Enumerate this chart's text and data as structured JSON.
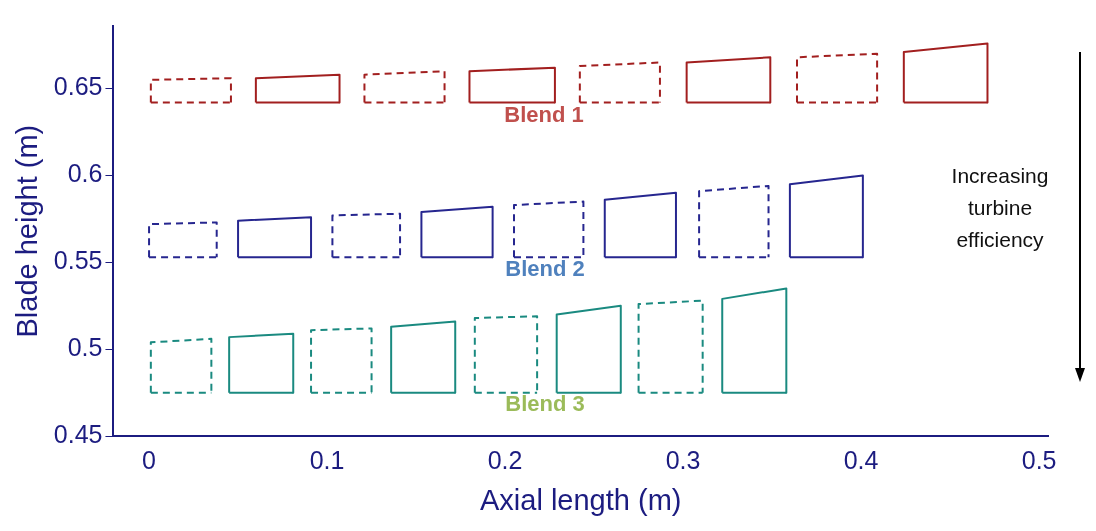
{
  "chart_data": {
    "type": "line",
    "xlabel": "Axial length (m)",
    "ylabel": "Blade height (m)",
    "xlim": [
      -0.02,
      0.505
    ],
    "ylim": [
      0.45,
      0.686
    ],
    "xticks": [
      0,
      0.1,
      0.2,
      0.3,
      0.4,
      0.5
    ],
    "yticks": [
      0.45,
      0.5,
      0.55,
      0.6,
      0.65
    ],
    "grid": false,
    "legend": false,
    "marker": "none",
    "series": [
      {
        "color": "#a21f1f",
        "line_style": "dashed",
        "x": [
          0.001,
          0.001,
          0.046,
          0.046
        ],
        "values": [
          0.642,
          0.655,
          0.656,
          0.642
        ]
      },
      {
        "color": "#a21f1f",
        "line_style": "solid",
        "x": [
          0.06,
          0.06,
          0.107,
          0.107
        ],
        "values": [
          0.642,
          0.656,
          0.658,
          0.642
        ]
      },
      {
        "color": "#a21f1f",
        "line_style": "dashed",
        "x": [
          0.121,
          0.121,
          0.166,
          0.166
        ],
        "values": [
          0.642,
          0.658,
          0.66,
          0.642
        ]
      },
      {
        "color": "#a21f1f",
        "line_style": "solid",
        "x": [
          0.18,
          0.18,
          0.228,
          0.228
        ],
        "values": [
          0.642,
          0.66,
          0.662,
          0.642
        ]
      },
      {
        "color": "#a21f1f",
        "line_style": "dashed",
        "x": [
          0.242,
          0.242,
          0.287,
          0.287
        ],
        "values": [
          0.642,
          0.663,
          0.665,
          0.642
        ]
      },
      {
        "color": "#a21f1f",
        "line_style": "solid",
        "x": [
          0.302,
          0.302,
          0.349,
          0.349
        ],
        "values": [
          0.642,
          0.665,
          0.668,
          0.642
        ]
      },
      {
        "color": "#a21f1f",
        "line_style": "dashed",
        "x": [
          0.364,
          0.364,
          0.409,
          0.409
        ],
        "values": [
          0.642,
          0.668,
          0.67,
          0.642
        ]
      },
      {
        "color": "#a21f1f",
        "line_style": "solid",
        "x": [
          0.424,
          0.424,
          0.471,
          0.471
        ],
        "values": [
          0.642,
          0.671,
          0.676,
          0.642
        ]
      },
      {
        "color": "#26268f",
        "line_style": "dashed",
        "x": [
          0,
          0,
          0.038,
          0.038
        ],
        "values": [
          0.553,
          0.572,
          0.573,
          0.553
        ]
      },
      {
        "color": "#26268f",
        "line_style": "solid",
        "x": [
          0.05,
          0.05,
          0.091,
          0.091
        ],
        "values": [
          0.553,
          0.574,
          0.576,
          0.553
        ]
      },
      {
        "color": "#26268f",
        "line_style": "dashed",
        "x": [
          0.103,
          0.103,
          0.141,
          0.141
        ],
        "values": [
          0.553,
          0.577,
          0.578,
          0.553
        ]
      },
      {
        "color": "#26268f",
        "line_style": "solid",
        "x": [
          0.153,
          0.153,
          0.193,
          0.193
        ],
        "values": [
          0.553,
          0.579,
          0.582,
          0.553
        ]
      },
      {
        "color": "#26268f",
        "line_style": "dashed",
        "x": [
          0.205,
          0.205,
          0.244,
          0.244
        ],
        "values": [
          0.553,
          0.583,
          0.585,
          0.553
        ]
      },
      {
        "color": "#26268f",
        "line_style": "solid",
        "x": [
          0.256,
          0.256,
          0.296,
          0.296
        ],
        "values": [
          0.553,
          0.586,
          0.59,
          0.553
        ]
      },
      {
        "color": "#26268f",
        "line_style": "dashed",
        "x": [
          0.309,
          0.309,
          0.348,
          0.348
        ],
        "values": [
          0.553,
          0.591,
          0.594,
          0.553
        ]
      },
      {
        "color": "#26268f",
        "line_style": "solid",
        "x": [
          0.36,
          0.36,
          0.401,
          0.401
        ],
        "values": [
          0.553,
          0.595,
          0.6,
          0.553
        ]
      },
      {
        "color": "#1a8a80",
        "line_style": "dashed",
        "x": [
          0.001,
          0.001,
          0.035,
          0.035
        ],
        "values": [
          0.475,
          0.504,
          0.506,
          0.475
        ]
      },
      {
        "color": "#1a8a80",
        "line_style": "solid",
        "x": [
          0.045,
          0.045,
          0.081,
          0.081
        ],
        "values": [
          0.475,
          0.507,
          0.509,
          0.475
        ]
      },
      {
        "color": "#1a8a80",
        "line_style": "dashed",
        "x": [
          0.091,
          0.091,
          0.125,
          0.125
        ],
        "values": [
          0.475,
          0.511,
          0.512,
          0.475
        ]
      },
      {
        "color": "#1a8a80",
        "line_style": "solid",
        "x": [
          0.136,
          0.136,
          0.172,
          0.172
        ],
        "values": [
          0.475,
          0.513,
          0.516,
          0.475
        ]
      },
      {
        "color": "#1a8a80",
        "line_style": "dashed",
        "x": [
          0.183,
          0.183,
          0.218,
          0.218
        ],
        "values": [
          0.475,
          0.518,
          0.519,
          0.475
        ]
      },
      {
        "color": "#1a8a80",
        "line_style": "solid",
        "x": [
          0.229,
          0.229,
          0.265,
          0.265
        ],
        "values": [
          0.475,
          0.52,
          0.525,
          0.475
        ]
      },
      {
        "color": "#1a8a80",
        "line_style": "dashed",
        "x": [
          0.275,
          0.275,
          0.311,
          0.311
        ],
        "values": [
          0.475,
          0.526,
          0.528,
          0.475
        ]
      },
      {
        "color": "#1a8a80",
        "line_style": "solid",
        "x": [
          0.322,
          0.322,
          0.358,
          0.358
        ],
        "values": [
          0.475,
          0.529,
          0.535,
          0.475
        ]
      },
      {
        "color": "#a21f1f",
        "line_style": "dashed",
        "x": [
          0.001,
          0.046
        ],
        "values": [
          0.642,
          0.642
        ]
      },
      {
        "color": "#a21f1f",
        "line_style": "solid",
        "x": [
          0.06,
          0.107
        ],
        "values": [
          0.642,
          0.642
        ]
      },
      {
        "color": "#a21f1f",
        "line_style": "dashed",
        "x": [
          0.121,
          0.166
        ],
        "values": [
          0.642,
          0.642
        ]
      },
      {
        "color": "#a21f1f",
        "line_style": "solid",
        "x": [
          0.18,
          0.228
        ],
        "values": [
          0.642,
          0.642
        ]
      },
      {
        "color": "#a21f1f",
        "line_style": "dashed",
        "x": [
          0.242,
          0.287
        ],
        "values": [
          0.642,
          0.642
        ]
      },
      {
        "color": "#a21f1f",
        "line_style": "solid",
        "x": [
          0.302,
          0.349
        ],
        "values": [
          0.642,
          0.642
        ]
      },
      {
        "color": "#a21f1f",
        "line_style": "dashed",
        "x": [
          0.364,
          0.409
        ],
        "values": [
          0.642,
          0.642
        ]
      },
      {
        "color": "#a21f1f",
        "line_style": "solid",
        "x": [
          0.424,
          0.471
        ],
        "values": [
          0.642,
          0.642
        ]
      },
      {
        "color": "#26268f",
        "line_style": "dashed",
        "x": [
          0,
          0.038
        ],
        "values": [
          0.553,
          0.553
        ]
      },
      {
        "color": "#26268f",
        "line_style": "solid",
        "x": [
          0.05,
          0.091
        ],
        "values": [
          0.553,
          0.553
        ]
      },
      {
        "color": "#26268f",
        "line_style": "dashed",
        "x": [
          0.103,
          0.141
        ],
        "values": [
          0.553,
          0.553
        ]
      },
      {
        "color": "#26268f",
        "line_style": "solid",
        "x": [
          0.153,
          0.193
        ],
        "values": [
          0.553,
          0.553
        ]
      },
      {
        "color": "#26268f",
        "line_style": "dashed",
        "x": [
          0.205,
          0.244
        ],
        "values": [
          0.553,
          0.553
        ]
      },
      {
        "color": "#26268f",
        "line_style": "solid",
        "x": [
          0.256,
          0.296
        ],
        "values": [
          0.553,
          0.553
        ]
      },
      {
        "color": "#26268f",
        "line_style": "dashed",
        "x": [
          0.309,
          0.348
        ],
        "values": [
          0.553,
          0.553
        ]
      },
      {
        "color": "#26268f",
        "line_style": "solid",
        "x": [
          0.36,
          0.401
        ],
        "values": [
          0.553,
          0.553
        ]
      },
      {
        "color": "#1a8a80",
        "line_style": "dashed",
        "x": [
          0.001,
          0.035
        ],
        "values": [
          0.475,
          0.475
        ]
      },
      {
        "color": "#1a8a80",
        "line_style": "solid",
        "x": [
          0.045,
          0.081
        ],
        "values": [
          0.475,
          0.475
        ]
      },
      {
        "color": "#1a8a80",
        "line_style": "dashed",
        "x": [
          0.091,
          0.125
        ],
        "values": [
          0.475,
          0.475
        ]
      },
      {
        "color": "#1a8a80",
        "line_style": "solid",
        "x": [
          0.136,
          0.172
        ],
        "values": [
          0.475,
          0.475
        ]
      },
      {
        "color": "#1a8a80",
        "line_style": "dashed",
        "x": [
          0.183,
          0.218
        ],
        "values": [
          0.475,
          0.475
        ]
      },
      {
        "color": "#1a8a80",
        "line_style": "solid",
        "x": [
          0.229,
          0.265
        ],
        "values": [
          0.475,
          0.475
        ]
      },
      {
        "color": "#1a8a80",
        "line_style": "dashed",
        "x": [
          0.275,
          0.311
        ],
        "values": [
          0.475,
          0.475
        ]
      },
      {
        "color": "#1a8a80",
        "line_style": "solid",
        "x": [
          0.322,
          0.358
        ],
        "values": [
          0.475,
          0.475
        ]
      }
    ],
    "annotations": [
      "Blend 1",
      "Blend 2",
      "Blend 3",
      "Increasing turbine efficiency"
    ]
  }
}
